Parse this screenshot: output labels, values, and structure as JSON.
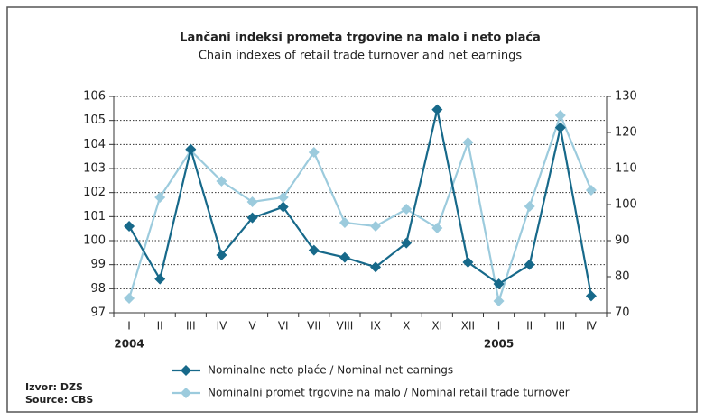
{
  "chart_data": {
    "type": "line",
    "title": "Lančani indeksi prometa trgovine na malo i neto plaća",
    "subtitle": "Chain indexes of retail trade turnover and net earnings",
    "categories": [
      "I",
      "II",
      "III",
      "IV",
      "V",
      "VI",
      "VII",
      "VIII",
      "IX",
      "X",
      "XI",
      "XII",
      "I",
      "II",
      "III",
      "IV"
    ],
    "years": [
      "2004",
      null,
      null,
      null,
      null,
      null,
      null,
      null,
      null,
      null,
      null,
      null,
      "2005",
      null,
      null,
      null
    ],
    "series": [
      {
        "name": "Nominalne neto plaće / Nominal net earnings",
        "color": "#17698a",
        "axis": "y",
        "values": [
          100.6,
          98.4,
          103.8,
          99.4,
          100.95,
          101.4,
          99.6,
          99.3,
          98.9,
          99.9,
          105.45,
          99.1,
          98.2,
          99.0,
          104.7,
          97.7
        ]
      },
      {
        "name": "Nominalni promet trgovine na malo / Nominal retail trade turnover",
        "color": "#9ccbdd",
        "axis": "y2",
        "values": [
          74,
          102,
          115,
          106.5,
          100.75,
          102,
          114.5,
          95,
          94,
          98.75,
          93.5,
          117.25,
          73.25,
          99.5,
          124.75,
          104
        ]
      }
    ],
    "ylim": [
      97,
      106
    ],
    "yticks": [
      97,
      98,
      99,
      100,
      101,
      102,
      103,
      104,
      105,
      106
    ],
    "y2lim": [
      70,
      130
    ],
    "y2ticks": [
      70,
      80,
      90,
      100,
      110,
      120,
      130
    ],
    "grid": true,
    "legend": "bottom",
    "source": [
      "Izvor: DZS",
      "Source: CBS"
    ]
  }
}
